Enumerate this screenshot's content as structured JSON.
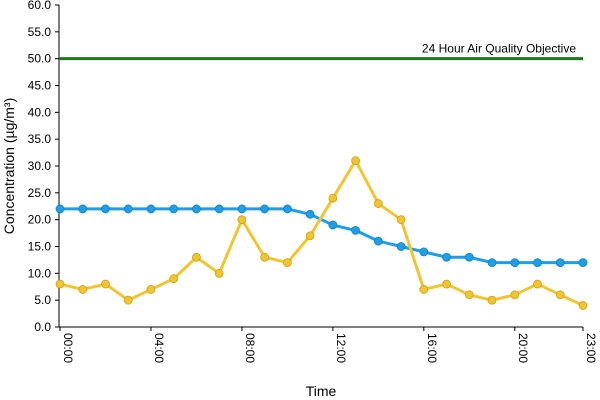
{
  "chart_data": {
    "type": "line",
    "title": "",
    "xlabel": "Time",
    "ylabel": "Concentration (µg/m³)",
    "ylim": [
      0,
      60
    ],
    "y_ticks": [
      "0.0",
      "5.0",
      "10.0",
      "15.0",
      "20.0",
      "25.0",
      "30.0",
      "35.0",
      "40.0",
      "45.0",
      "50.0",
      "55.0",
      "60.0"
    ],
    "x_ticks": [
      "00:00",
      "04:00",
      "08:00",
      "12:00",
      "16:00",
      "20:00",
      "23:00"
    ],
    "x": [
      "00:00",
      "01:00",
      "02:00",
      "03:00",
      "04:00",
      "05:00",
      "06:00",
      "07:00",
      "08:00",
      "09:00",
      "10:00",
      "11:00",
      "12:00",
      "13:00",
      "14:00",
      "15:00",
      "16:00",
      "17:00",
      "18:00",
      "19:00",
      "20:00",
      "21:00",
      "22:00",
      "23:00"
    ],
    "grid": false,
    "legend": "none",
    "series": [
      {
        "color": "#1e9ee8",
        "values": [
          22,
          22,
          22,
          22,
          22,
          22,
          22,
          22,
          22,
          22,
          22,
          21,
          19,
          18,
          16,
          15,
          14,
          13,
          13,
          12,
          12,
          12,
          12,
          12
        ]
      },
      {
        "color": "#f2c530",
        "values": [
          8,
          7,
          8,
          5,
          7,
          9,
          13,
          10,
          20,
          13,
          12,
          17,
          24,
          31,
          23,
          20,
          7,
          8,
          6,
          5,
          6,
          8,
          6,
          4
        ]
      }
    ],
    "reference_line": {
      "value": 50,
      "label": "24 Hour Air Quality Objective",
      "color": "#1a7a1a"
    }
  }
}
